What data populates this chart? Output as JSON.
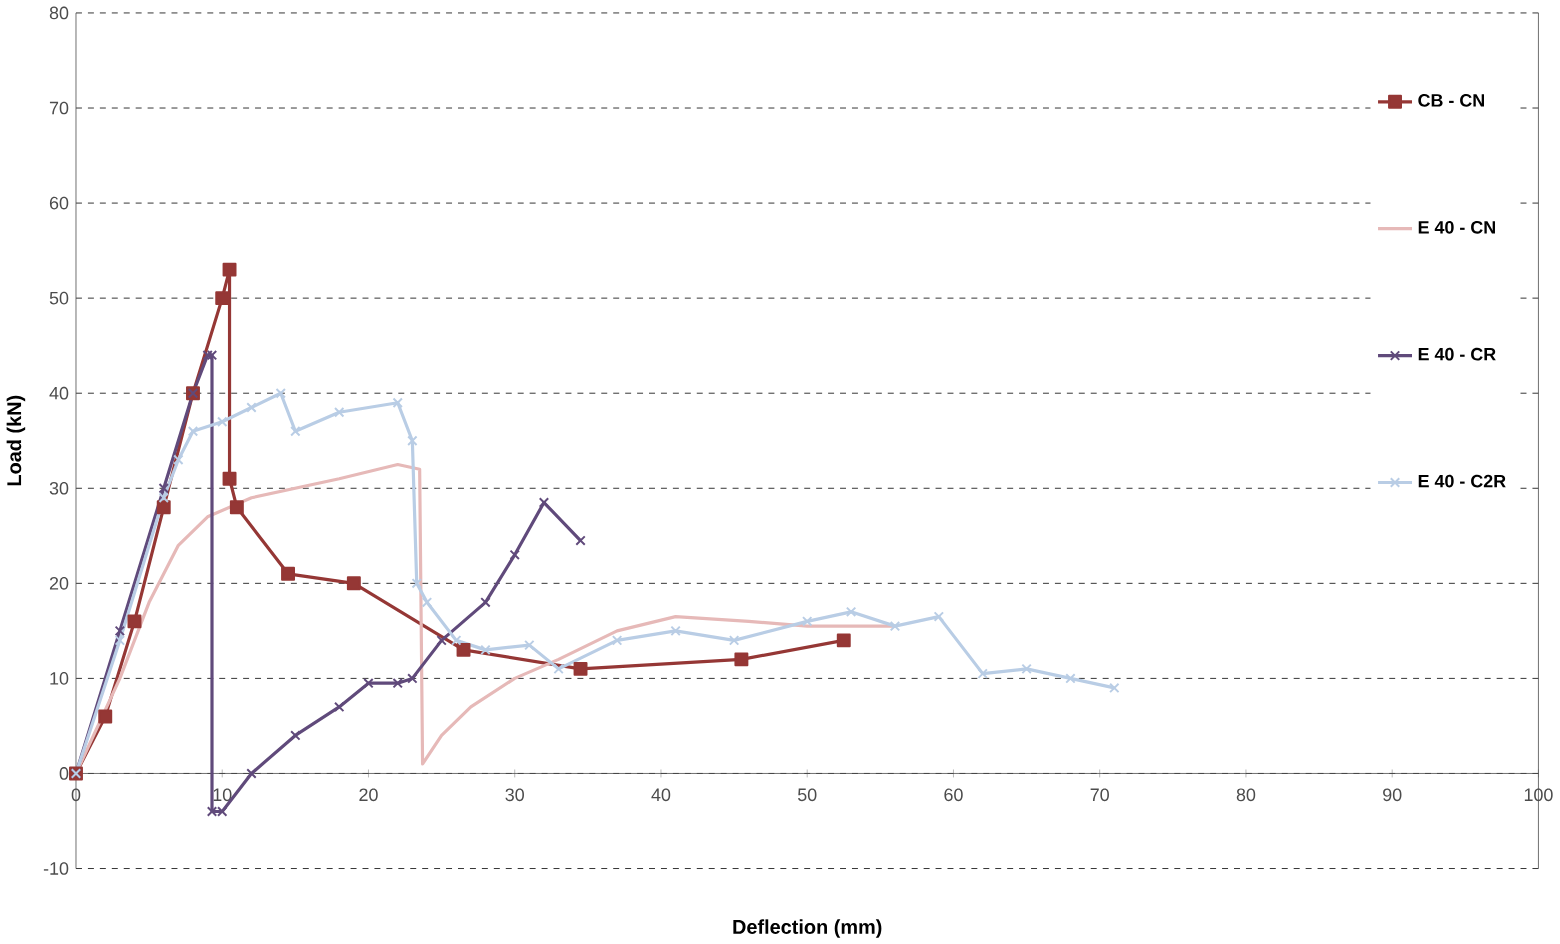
{
  "chart_data": {
    "type": "line",
    "xlabel": "Deflection (mm)",
    "ylabel": "Load (kN)",
    "xlim": [
      0,
      100
    ],
    "ylim": [
      -10,
      80
    ],
    "xticks": [
      0,
      10,
      20,
      30,
      40,
      50,
      60,
      70,
      80,
      90,
      100
    ],
    "yticks": [
      -10,
      0,
      10,
      20,
      30,
      40,
      50,
      60,
      70,
      80
    ],
    "grid": "y",
    "legend": "right",
    "line_style": "solid",
    "series": [
      {
        "name": "CB - CN",
        "color": "#953735",
        "marker": "square",
        "x": [
          0,
          2,
          4,
          6,
          8,
          10,
          10.5,
          10.5,
          11,
          14.5,
          19,
          26.5,
          34.5,
          45.5,
          52.5
        ],
        "values": [
          0,
          6,
          16,
          28,
          40,
          50,
          53,
          31,
          28,
          21,
          20,
          13,
          11,
          12,
          14
        ]
      },
      {
        "name": "E 40 - CN",
        "color": "#e6b9b8",
        "marker": "none",
        "x": [
          0,
          3,
          5,
          7,
          9,
          12,
          15,
          18,
          22,
          23.5,
          23.7,
          25,
          27,
          30,
          33,
          37,
          41,
          46,
          50,
          56
        ],
        "values": [
          0,
          10,
          18,
          24,
          27,
          29,
          30,
          31,
          32.5,
          32,
          1,
          4,
          7,
          10,
          12,
          15,
          16.5,
          16,
          15.5,
          15.5
        ]
      },
      {
        "name": "E 40 - CR",
        "color": "#604a7b",
        "marker": "cross",
        "x": [
          0,
          3,
          6,
          8,
          9,
          9.3,
          9.3,
          10,
          12,
          15,
          18,
          20,
          22,
          23,
          25,
          28,
          30,
          32,
          34.5
        ],
        "values": [
          0,
          15,
          30,
          40,
          44,
          44,
          -4,
          -4,
          0,
          4,
          7,
          9.5,
          9.5,
          10,
          14,
          18,
          23,
          28.5,
          24.5
        ]
      },
      {
        "name": "E 40 - C2R",
        "color": "#b9cde5",
        "marker": "cross",
        "x": [
          0,
          3,
          6,
          7,
          8,
          10,
          12,
          14,
          15,
          18,
          22,
          23,
          23.3,
          24,
          26,
          28,
          31,
          33,
          37,
          41,
          45,
          50,
          53,
          56,
          59,
          62,
          65,
          68,
          71
        ],
        "values": [
          0,
          14,
          29,
          33,
          36,
          37,
          38.5,
          40,
          36,
          38,
          39,
          35,
          20,
          18,
          14,
          13,
          13.5,
          11,
          14,
          15,
          14,
          16,
          17,
          15.5,
          16.5,
          10.5,
          11,
          10,
          9
        ]
      }
    ]
  }
}
